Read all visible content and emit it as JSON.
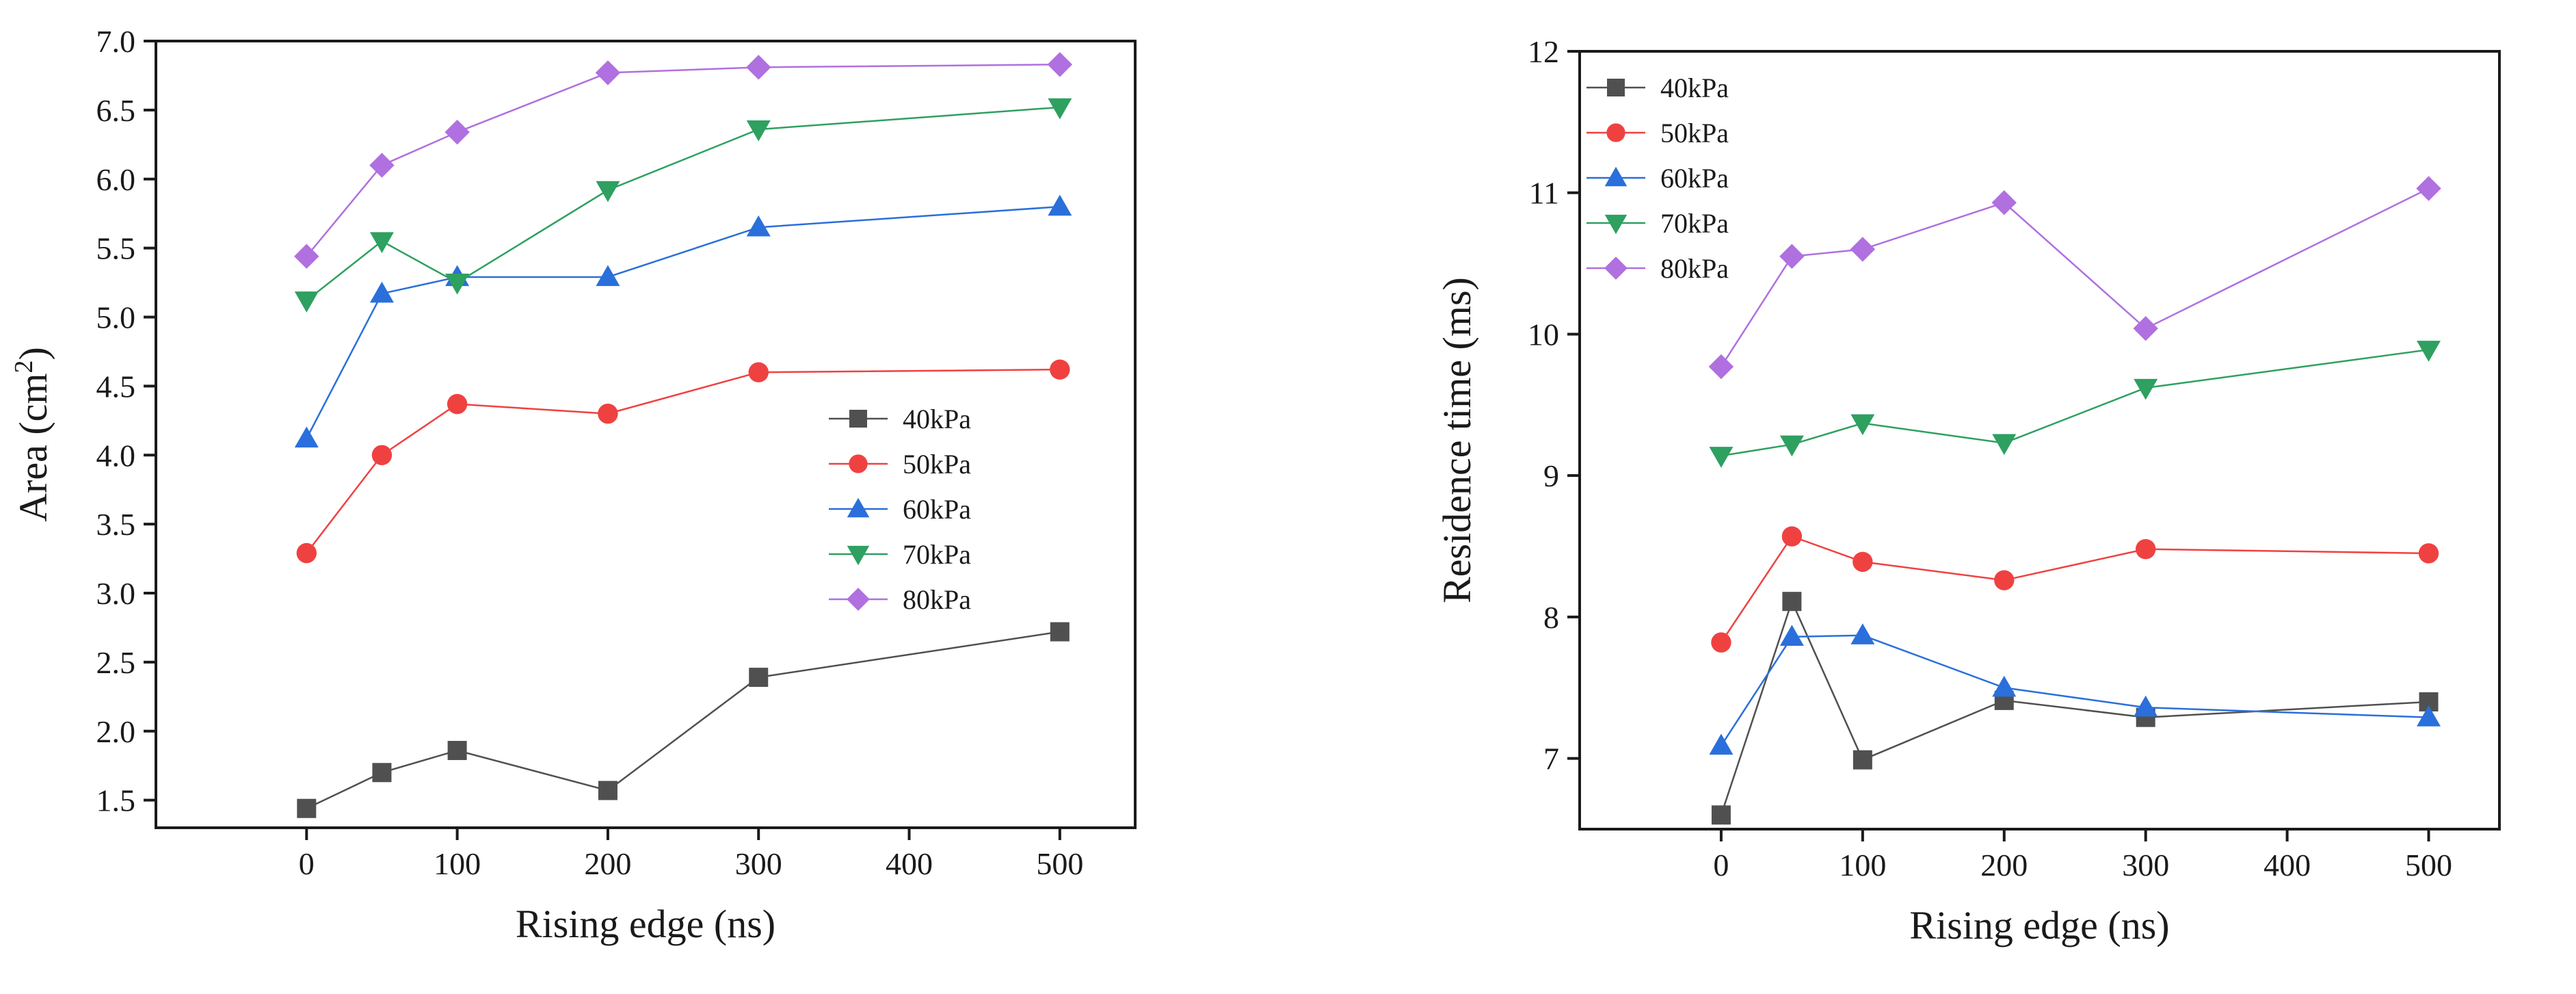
{
  "colors": {
    "40kPa": "#505050",
    "50kPa": "#f04141",
    "60kPa": "#2a6fdb",
    "70kPa": "#2ea060",
    "80kPa": "#b070e0"
  },
  "chart_data": [
    {
      "type": "line",
      "title": "",
      "xlabel": "Rising edge (ns)",
      "ylabel": "Area (cm",
      "ylabel_sup": "2",
      "ylabel_close": ")",
      "xlim": [
        -100,
        550
      ],
      "ylim": [
        1.3,
        7.0
      ],
      "xticks": [
        0,
        100,
        200,
        300,
        400,
        500
      ],
      "xtick_labels": [
        "0",
        "100",
        "200",
        "300",
        "400",
        "500"
      ],
      "yticks": [
        1.5,
        2.0,
        2.5,
        3.0,
        3.5,
        4.0,
        4.5,
        5.0,
        5.5,
        6.0,
        6.5,
        7.0
      ],
      "ytick_labels": [
        "1.5",
        "2.0",
        "2.5",
        "3.0",
        "3.5",
        "4.0",
        "4.5",
        "5.0",
        "5.5",
        "6.0",
        "6.5",
        "7.0"
      ],
      "legend_position": "center-right",
      "x": [
        0,
        50,
        100,
        200,
        300,
        500
      ],
      "series": [
        {
          "name": "40kPa",
          "marker": "square",
          "values": [
            1.44,
            1.7,
            1.86,
            1.57,
            2.39,
            2.72
          ]
        },
        {
          "name": "50kPa",
          "marker": "circle",
          "values": [
            3.29,
            4.0,
            4.37,
            4.3,
            4.6,
            4.62
          ]
        },
        {
          "name": "60kPa",
          "marker": "triangle-up",
          "values": [
            4.12,
            5.17,
            5.29,
            5.29,
            5.65,
            5.8
          ]
        },
        {
          "name": "70kPa",
          "marker": "triangle-down",
          "values": [
            5.12,
            5.55,
            5.25,
            5.92,
            6.36,
            6.52
          ]
        },
        {
          "name": "80kPa",
          "marker": "diamond",
          "values": [
            5.44,
            6.1,
            6.34,
            6.77,
            6.81,
            6.83
          ]
        }
      ]
    },
    {
      "type": "line",
      "title": "",
      "xlabel": "Rising edge (ns)",
      "ylabel": "Residence time (ms)",
      "xlim": [
        -100,
        550
      ],
      "ylim": [
        6.5,
        12.0
      ],
      "xticks": [
        0,
        100,
        200,
        300,
        400,
        500
      ],
      "xtick_labels": [
        "0",
        "100",
        "200",
        "300",
        "400",
        "500"
      ],
      "yticks": [
        7,
        8,
        9,
        10,
        11,
        12
      ],
      "ytick_labels": [
        "7",
        "8",
        "9",
        "10",
        "11",
        "12"
      ],
      "legend_position": "top-left",
      "x": [
        0,
        50,
        100,
        200,
        300,
        500
      ],
      "series": [
        {
          "name": "40kPa",
          "marker": "square",
          "values": [
            6.6,
            8.11,
            6.99,
            7.41,
            7.29,
            7.4
          ]
        },
        {
          "name": "50kPa",
          "marker": "circle",
          "values": [
            7.82,
            8.57,
            8.39,
            8.26,
            8.48,
            8.45
          ]
        },
        {
          "name": "60kPa",
          "marker": "triangle-up",
          "values": [
            7.09,
            7.86,
            7.87,
            7.5,
            7.36,
            7.29
          ]
        },
        {
          "name": "70kPa",
          "marker": "triangle-down",
          "values": [
            9.14,
            9.22,
            9.37,
            9.23,
            9.62,
            9.89
          ]
        },
        {
          "name": "80kPa",
          "marker": "diamond",
          "values": [
            9.77,
            10.55,
            10.6,
            10.93,
            10.04,
            11.03
          ]
        }
      ]
    }
  ]
}
